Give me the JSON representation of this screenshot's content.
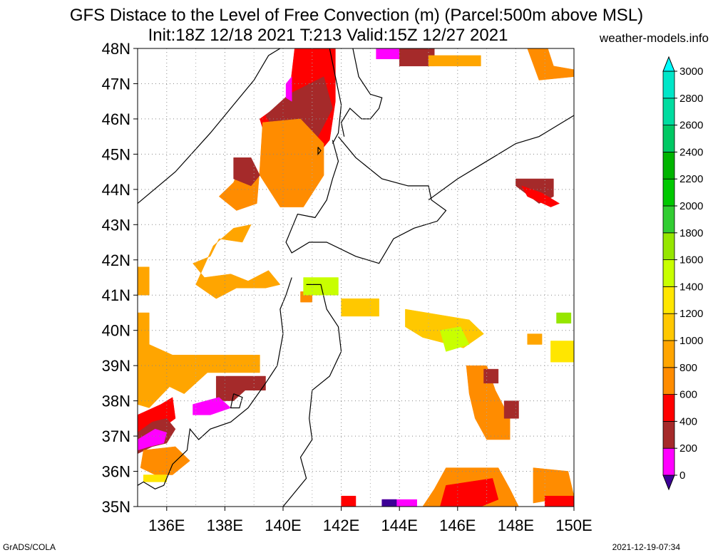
{
  "header": {
    "title_line1": "GFS Distace to the Level of Free Convection (m) (Parcel:500m above MSL)",
    "title_line2": "Init:18Z 12/18 2021 T:213 Valid:15Z 12/27 2021",
    "site": "weather-models.info"
  },
  "map": {
    "lat_labels": [
      "48N",
      "47N",
      "46N",
      "45N",
      "44N",
      "43N",
      "42N",
      "41N",
      "40N",
      "39N",
      "38N",
      "37N",
      "36N",
      "35N"
    ],
    "lon_labels": [
      "136E",
      "138E",
      "140E",
      "142E",
      "144E",
      "146E",
      "148E",
      "150E"
    ],
    "lat_range": [
      35,
      48
    ],
    "lon_range": [
      135,
      150
    ],
    "grid": "dotted"
  },
  "colorbar": {
    "levels": [
      "0",
      "200",
      "400",
      "600",
      "800",
      "1000",
      "1200",
      "1400",
      "1600",
      "1800",
      "2000",
      "2200",
      "2400",
      "2600",
      "2800",
      "3000"
    ],
    "colors": [
      "#3c0096",
      "#ff00ff",
      "#a52a2a",
      "#ff0000",
      "#ff8c00",
      "#ffa500",
      "#ffc800",
      "#ffe600",
      "#c8ff00",
      "#96e600",
      "#32cd32",
      "#00c800",
      "#00b400",
      "#00c864",
      "#00dca0",
      "#00e6c8",
      "#00ffff"
    ]
  },
  "footer": {
    "credit": "GrADS/COLA",
    "timestamp": "2021-12-19-07:34"
  }
}
